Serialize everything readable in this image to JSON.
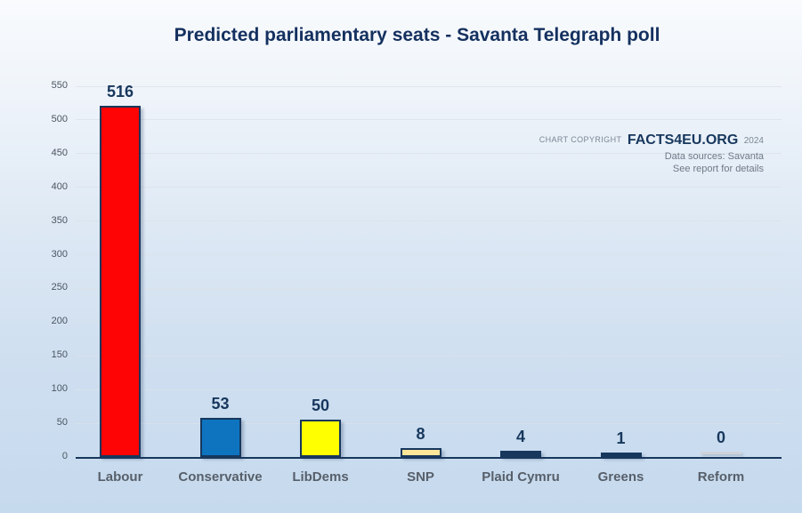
{
  "title": "Predicted parliamentary seats - Savanta Telegraph poll",
  "copyright": {
    "prefix": "CHART COPYRIGHT",
    "brand": "FACTS4EU.ORG",
    "year": "2024",
    "source_line": "Data sources: Savanta",
    "note_line": "See report for details"
  },
  "colors": {
    "accent_navy": "#17375d",
    "title_navy": "#14305f",
    "axis_label_gray": "#575f6a",
    "zero_bar_gray": "#cfd4da"
  },
  "chart_data": {
    "type": "bar",
    "title": "Predicted parliamentary seats - Savanta Telegraph poll",
    "categories": [
      "Labour",
      "Conservative",
      "LibDems",
      "SNP",
      "Plaid Cymru",
      "Greens",
      "Reform"
    ],
    "values": [
      516,
      53,
      50,
      8,
      4,
      1,
      0
    ],
    "bar_colors": [
      "#fe0404",
      "#0e74c0",
      "#ffff00",
      "#ffe699",
      "#17375d",
      "#17375d",
      "#cfd4da"
    ],
    "bar_border_color": "#17375d",
    "xlabel": "",
    "ylabel": "",
    "ylim": [
      0,
      550
    ],
    "ytick_step": 50,
    "grid": true,
    "value_labels_shown": true,
    "legend": "none"
  }
}
